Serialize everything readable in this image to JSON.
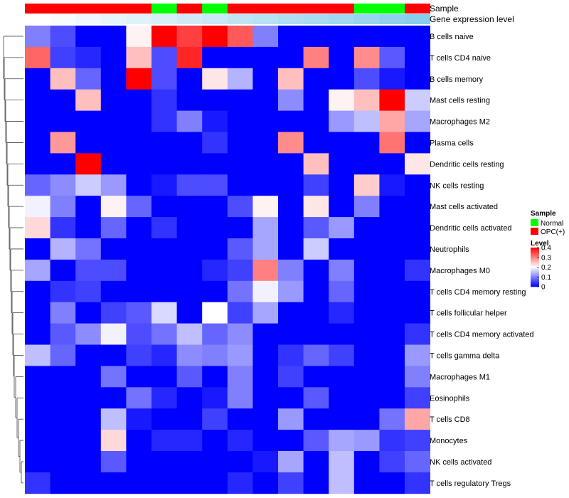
{
  "chart_data": {
    "type": "heatmap",
    "title": "",
    "tracks": {
      "sample_label": "Sample",
      "level_label": "Gene expression level"
    },
    "sample_groups": [
      "OPC(+)",
      "OPC(+)",
      "OPC(+)",
      "OPC(+)",
      "OPC(+)",
      "Normal",
      "OPC(+)",
      "Normal",
      "OPC(+)",
      "OPC(+)",
      "OPC(+)",
      "OPC(+)",
      "OPC(+)",
      "Normal",
      "Normal",
      "OPC(+)"
    ],
    "expression_level_track": [
      0.0,
      0.02,
      0.04,
      0.06,
      0.08,
      0.1,
      0.12,
      0.14,
      0.16,
      0.18,
      0.2,
      0.22,
      0.24,
      0.26,
      0.28,
      0.3
    ],
    "rows": [
      "B cells naive",
      "T cells CD4 naive",
      "B cells memory",
      "Mast cells resting",
      "Macrophages M2",
      "Plasma cells",
      "Dendritic cells resting",
      "NK cells resting",
      "Mast cells activated",
      "Dendritic cells activated",
      "Neutrophils",
      "Macrophages M0",
      "T cells CD4 memory resting",
      "T cells follicular helper",
      "T cells CD4 memory activated",
      "T cells gamma delta",
      "Macrophages M1",
      "Eosinophils",
      "T cells CD8",
      "Monocytes",
      "NK cells activated",
      "T cells regulatory  Tregs"
    ],
    "values": [
      [
        0.1,
        0.06,
        0.0,
        0.0,
        0.21,
        0.4,
        0.35,
        0.4,
        0.33,
        0.1,
        0.0,
        0.0,
        0.0,
        0.0,
        0.0,
        0.0
      ],
      [
        0.32,
        0.05,
        0.03,
        0.0,
        0.25,
        0.06,
        0.37,
        0.0,
        0.0,
        0.0,
        0.0,
        0.3,
        0.0,
        0.29,
        0.07,
        0.0
      ],
      [
        0.0,
        0.25,
        0.08,
        0.0,
        0.4,
        0.06,
        0.0,
        0.22,
        0.14,
        0.0,
        0.25,
        0.0,
        0.0,
        0.06,
        0.02,
        0.0
      ],
      [
        0.0,
        0.0,
        0.25,
        0.0,
        0.0,
        0.04,
        0.0,
        0.0,
        0.0,
        0.0,
        0.11,
        0.0,
        0.21,
        0.25,
        0.4,
        0.16
      ],
      [
        0.0,
        0.0,
        0.0,
        0.0,
        0.0,
        0.04,
        0.1,
        0.02,
        0.0,
        0.0,
        0.0,
        0.0,
        0.12,
        0.15,
        0.27,
        0.13
      ],
      [
        0.0,
        0.28,
        0.0,
        0.0,
        0.0,
        0.0,
        0.0,
        0.04,
        0.0,
        0.0,
        0.29,
        0.0,
        0.0,
        0.0,
        0.31,
        0.0
      ],
      [
        0.0,
        0.0,
        0.4,
        0.0,
        0.0,
        0.0,
        0.0,
        0.0,
        0.0,
        0.0,
        0.0,
        0.25,
        0.0,
        0.0,
        0.0,
        0.22
      ],
      [
        0.08,
        0.11,
        0.16,
        0.12,
        0.0,
        0.02,
        0.06,
        0.06,
        0.0,
        0.0,
        0.0,
        0.05,
        0.0,
        0.24,
        0.02,
        0.0
      ],
      [
        0.19,
        0.1,
        0.0,
        0.21,
        0.08,
        0.0,
        0.0,
        0.0,
        0.06,
        0.21,
        0.0,
        0.22,
        0.0,
        0.1,
        0.0,
        0.0
      ],
      [
        0.23,
        0.04,
        0.0,
        0.08,
        0.0,
        0.04,
        0.0,
        0.0,
        0.0,
        0.13,
        0.0,
        0.07,
        0.12,
        0.0,
        0.0,
        0.0
      ],
      [
        0.0,
        0.14,
        0.09,
        0.0,
        0.0,
        0.0,
        0.0,
        0.0,
        0.07,
        0.13,
        0.0,
        0.16,
        0.0,
        0.0,
        0.0,
        0.0
      ],
      [
        0.13,
        0.0,
        0.06,
        0.06,
        0.0,
        0.0,
        0.0,
        0.03,
        0.05,
        0.3,
        0.1,
        0.0,
        0.1,
        0.0,
        0.0,
        0.04
      ],
      [
        0.0,
        0.04,
        0.05,
        0.0,
        0.0,
        0.0,
        0.0,
        0.0,
        0.09,
        0.19,
        0.12,
        0.0,
        0.08,
        0.0,
        0.0,
        0.0
      ],
      [
        0.0,
        0.1,
        0.0,
        0.05,
        0.07,
        0.17,
        0.0,
        0.2,
        0.05,
        0.13,
        0.0,
        0.0,
        0.03,
        0.0,
        0.0,
        0.0
      ],
      [
        0.0,
        0.07,
        0.11,
        0.19,
        0.06,
        0.09,
        0.15,
        0.08,
        0.11,
        0.0,
        0.0,
        0.0,
        0.0,
        0.0,
        0.0,
        0.04
      ],
      [
        0.15,
        0.08,
        0.0,
        0.0,
        0.05,
        0.03,
        0.11,
        0.1,
        0.12,
        0.0,
        0.04,
        0.08,
        0.05,
        0.0,
        0.0,
        0.12
      ],
      [
        0.0,
        0.0,
        0.0,
        0.09,
        0.0,
        0.0,
        0.07,
        0.0,
        0.1,
        0.0,
        0.05,
        0.0,
        0.0,
        0.0,
        0.0,
        0.1
      ],
      [
        0.0,
        0.0,
        0.0,
        0.0,
        0.09,
        0.03,
        0.0,
        0.02,
        0.1,
        0.0,
        0.0,
        0.07,
        0.0,
        0.0,
        0.0,
        0.05
      ],
      [
        0.0,
        0.0,
        0.0,
        0.15,
        0.02,
        0.0,
        0.0,
        0.05,
        0.0,
        0.0,
        0.12,
        0.0,
        0.0,
        0.0,
        0.09,
        0.27
      ],
      [
        0.0,
        0.0,
        0.0,
        0.23,
        0.0,
        0.03,
        0.03,
        0.0,
        0.03,
        0.0,
        0.0,
        0.07,
        0.13,
        0.12,
        0.04,
        0.05
      ],
      [
        0.0,
        0.0,
        0.0,
        0.07,
        0.0,
        0.0,
        0.0,
        0.0,
        0.0,
        0.02,
        0.13,
        0.0,
        0.15,
        0.0,
        0.05,
        0.08
      ],
      [
        0.04,
        0.0,
        0.0,
        0.0,
        0.0,
        0.0,
        0.0,
        0.0,
        0.03,
        0.0,
        0.05,
        0.0,
        0.15,
        0.0,
        0.0,
        0.04
      ]
    ],
    "value_range": [
      0,
      0.4
    ],
    "colorscale": [
      "#0000ff",
      "#ffffff",
      "#ff0000"
    ],
    "legend": {
      "placement": "right",
      "sample_title": "Sample",
      "sample_entries": [
        {
          "label": "Normal",
          "color": "#00ff00"
        },
        {
          "label": "OPC(+)",
          "color": "#ff0000"
        }
      ],
      "level_title": "Level",
      "level_ticks": [
        0,
        0.1,
        0.2,
        0.3,
        0.4
      ],
      "level_tick_labels": [
        "0",
        "0.1",
        "0.2",
        "0.3",
        "0.4"
      ]
    },
    "level_track_colors": [
      "#ffffff",
      "#87ceeb"
    ]
  }
}
